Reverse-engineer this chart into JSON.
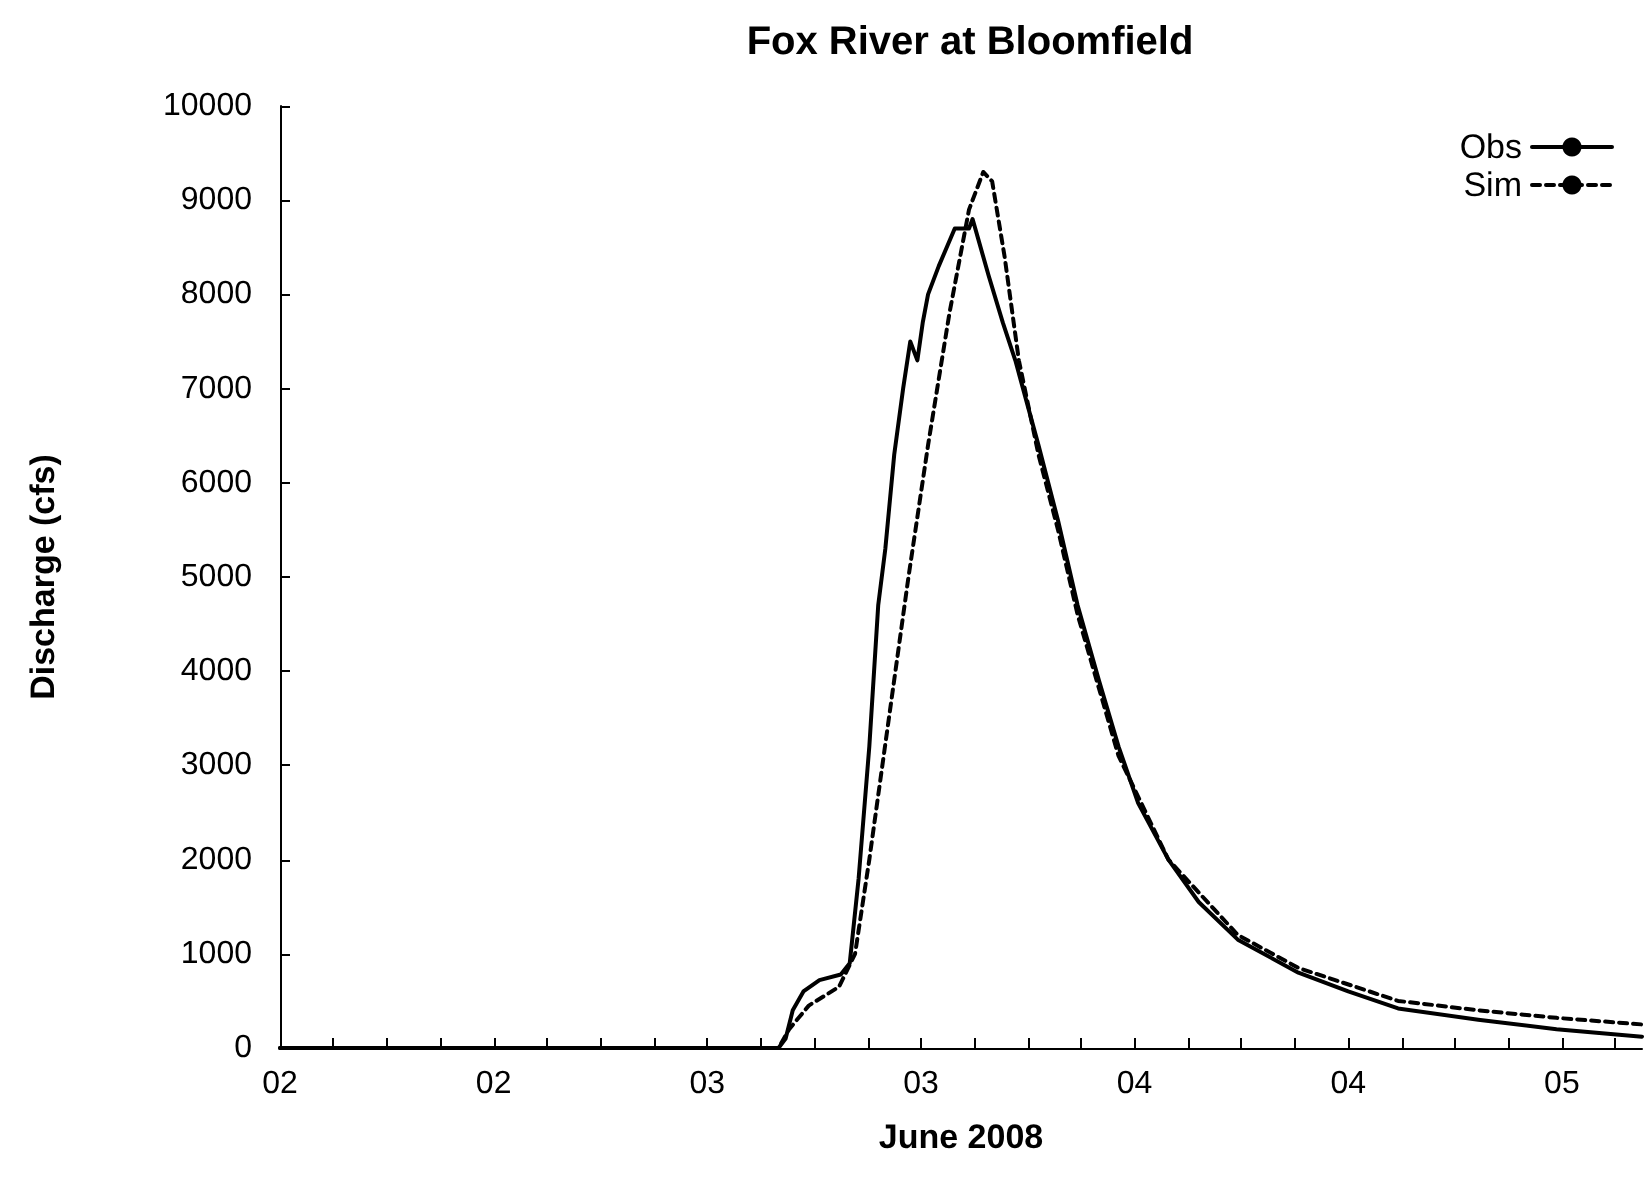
{
  "chart_data": {
    "type": "line",
    "title": "Fox River at Bloomfield",
    "xlabel": "June 2008",
    "ylabel": "Discharge (cfs)",
    "xlim": [
      "2008-06-02T00:00",
      "2008-06-05T04:30"
    ],
    "ylim": [
      0,
      10000
    ],
    "xticks": [
      {
        "value": "2008-06-02T00:00",
        "label": "02"
      },
      {
        "value": "2008-06-02T03:00",
        "label": null
      },
      {
        "value": "2008-06-02T06:00",
        "label": null
      },
      {
        "value": "2008-06-02T09:00",
        "label": null
      },
      {
        "value": "2008-06-02T12:00",
        "label": "02"
      },
      {
        "value": "2008-06-02T15:00",
        "label": null
      },
      {
        "value": "2008-06-02T18:00",
        "label": null
      },
      {
        "value": "2008-06-02T21:00",
        "label": null
      },
      {
        "value": "2008-06-03T00:00",
        "label": "03"
      },
      {
        "value": "2008-06-03T03:00",
        "label": null
      },
      {
        "value": "2008-06-03T06:00",
        "label": null
      },
      {
        "value": "2008-06-03T09:00",
        "label": null
      },
      {
        "value": "2008-06-03T12:00",
        "label": "03"
      },
      {
        "value": "2008-06-03T15:00",
        "label": null
      },
      {
        "value": "2008-06-03T18:00",
        "label": null
      },
      {
        "value": "2008-06-03T21:00",
        "label": null
      },
      {
        "value": "2008-06-04T00:00",
        "label": "04"
      },
      {
        "value": "2008-06-04T03:00",
        "label": null
      },
      {
        "value": "2008-06-04T06:00",
        "label": null
      },
      {
        "value": "2008-06-04T09:00",
        "label": null
      },
      {
        "value": "2008-06-04T12:00",
        "label": "04"
      },
      {
        "value": "2008-06-04T15:00",
        "label": null
      },
      {
        "value": "2008-06-04T18:00",
        "label": null
      },
      {
        "value": "2008-06-04T21:00",
        "label": null
      },
      {
        "value": "2008-06-05T00:00",
        "label": "05"
      },
      {
        "value": "2008-06-05T03:00",
        "label": null
      }
    ],
    "yticks": [
      0,
      1000,
      2000,
      3000,
      4000,
      5000,
      6000,
      7000,
      8000,
      9000,
      10000
    ],
    "legend": "top right",
    "marker": "none",
    "series": [
      {
        "name": "Obs",
        "color": "#000000",
        "line_style": "solid",
        "x": [
          "2008-06-02T00:00",
          "2008-06-03T04:00",
          "2008-06-03T04:24",
          "2008-06-03T04:48",
          "2008-06-03T05:24",
          "2008-06-03T06:18",
          "2008-06-03T07:30",
          "2008-06-03T08:00",
          "2008-06-03T08:30",
          "2008-06-03T09:06",
          "2008-06-03T09:36",
          "2008-06-03T10:00",
          "2008-06-03T10:30",
          "2008-06-03T11:00",
          "2008-06-03T11:24",
          "2008-06-03T11:48",
          "2008-06-03T12:06",
          "2008-06-03T12:24",
          "2008-06-03T13:00",
          "2008-06-03T13:54",
          "2008-06-03T14:42",
          "2008-06-03T14:54",
          "2008-06-03T15:12",
          "2008-06-03T15:48",
          "2008-06-03T16:36",
          "2008-06-03T17:18",
          "2008-06-03T18:36",
          "2008-06-03T19:42",
          "2008-06-03T20:48",
          "2008-06-03T22:00",
          "2008-06-03T23:06",
          "2008-06-04T00:12",
          "2008-06-04T01:54",
          "2008-06-04T03:36",
          "2008-06-04T05:48",
          "2008-06-04T09:12",
          "2008-06-04T12:00",
          "2008-06-04T14:48",
          "2008-06-04T19:18",
          "2008-06-04T23:42",
          "2008-06-05T04:30"
        ],
        "values": [
          0,
          0,
          100,
          400,
          600,
          720,
          780,
          900,
          1800,
          3200,
          4700,
          5300,
          6300,
          7000,
          7500,
          7300,
          7700,
          8000,
          8300,
          8700,
          8700,
          8800,
          8600,
          8200,
          7700,
          7300,
          6400,
          5600,
          4700,
          3900,
          3200,
          2600,
          2000,
          1550,
          1150,
          800,
          600,
          420,
          300,
          200,
          120
        ]
      },
      {
        "name": "Sim",
        "color": "#000000",
        "line_style": "dashed",
        "x": [
          "2008-06-02T00:00",
          "2008-06-03T04:00",
          "2008-06-03T04:36",
          "2008-06-03T05:42",
          "2008-06-03T07:24",
          "2008-06-03T08:18",
          "2008-06-03T09:06",
          "2008-06-03T10:12",
          "2008-06-03T11:18",
          "2008-06-03T12:24",
          "2008-06-03T13:36",
          "2008-06-03T14:42",
          "2008-06-03T15:30",
          "2008-06-03T16:00",
          "2008-06-03T16:42",
          "2008-06-03T17:30",
          "2008-06-03T18:36",
          "2008-06-03T19:42",
          "2008-06-03T20:48",
          "2008-06-03T23:06",
          "2008-06-04T01:54",
          "2008-06-04T05:48",
          "2008-06-04T09:12",
          "2008-06-04T14:48",
          "2008-06-04T19:18",
          "2008-06-04T23:42",
          "2008-06-05T04:30"
        ],
        "values": [
          0,
          0,
          200,
          450,
          650,
          1000,
          2000,
          3500,
          5000,
          6400,
          7800,
          8900,
          9300,
          9200,
          8400,
          7300,
          6300,
          5500,
          4600,
          3100,
          2000,
          1200,
          850,
          500,
          400,
          320,
          250
        ]
      }
    ]
  }
}
